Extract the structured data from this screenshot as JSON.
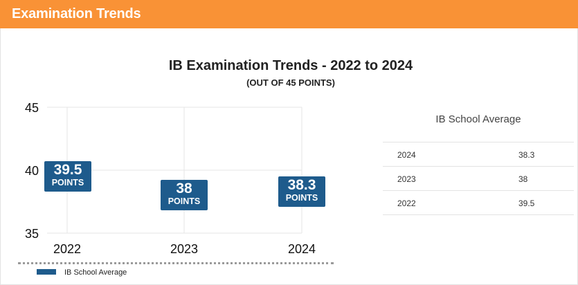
{
  "header": {
    "title": "Examination Trends"
  },
  "chart_data": {
    "type": "scatter",
    "title": "IB Examination Trends - 2022 to 2024",
    "subtitle": "(OUT OF 45 POINTS)",
    "categories": [
      "2022",
      "2023",
      "2024"
    ],
    "series": [
      {
        "name": "IB School Average",
        "values": [
          39.5,
          38,
          38.3
        ],
        "color": "#1e5b8c"
      }
    ],
    "y_ticks": [
      "45",
      "40",
      "35"
    ],
    "ylim": [
      35,
      45
    ],
    "point_unit": "POINTS",
    "grid": true,
    "legend_position": "bottom-left"
  },
  "table": {
    "title": "IB School Average",
    "rows": [
      {
        "year": "2024",
        "value": "38.3"
      },
      {
        "year": "2023",
        "value": "38"
      },
      {
        "year": "2022",
        "value": "39.5"
      }
    ]
  }
}
